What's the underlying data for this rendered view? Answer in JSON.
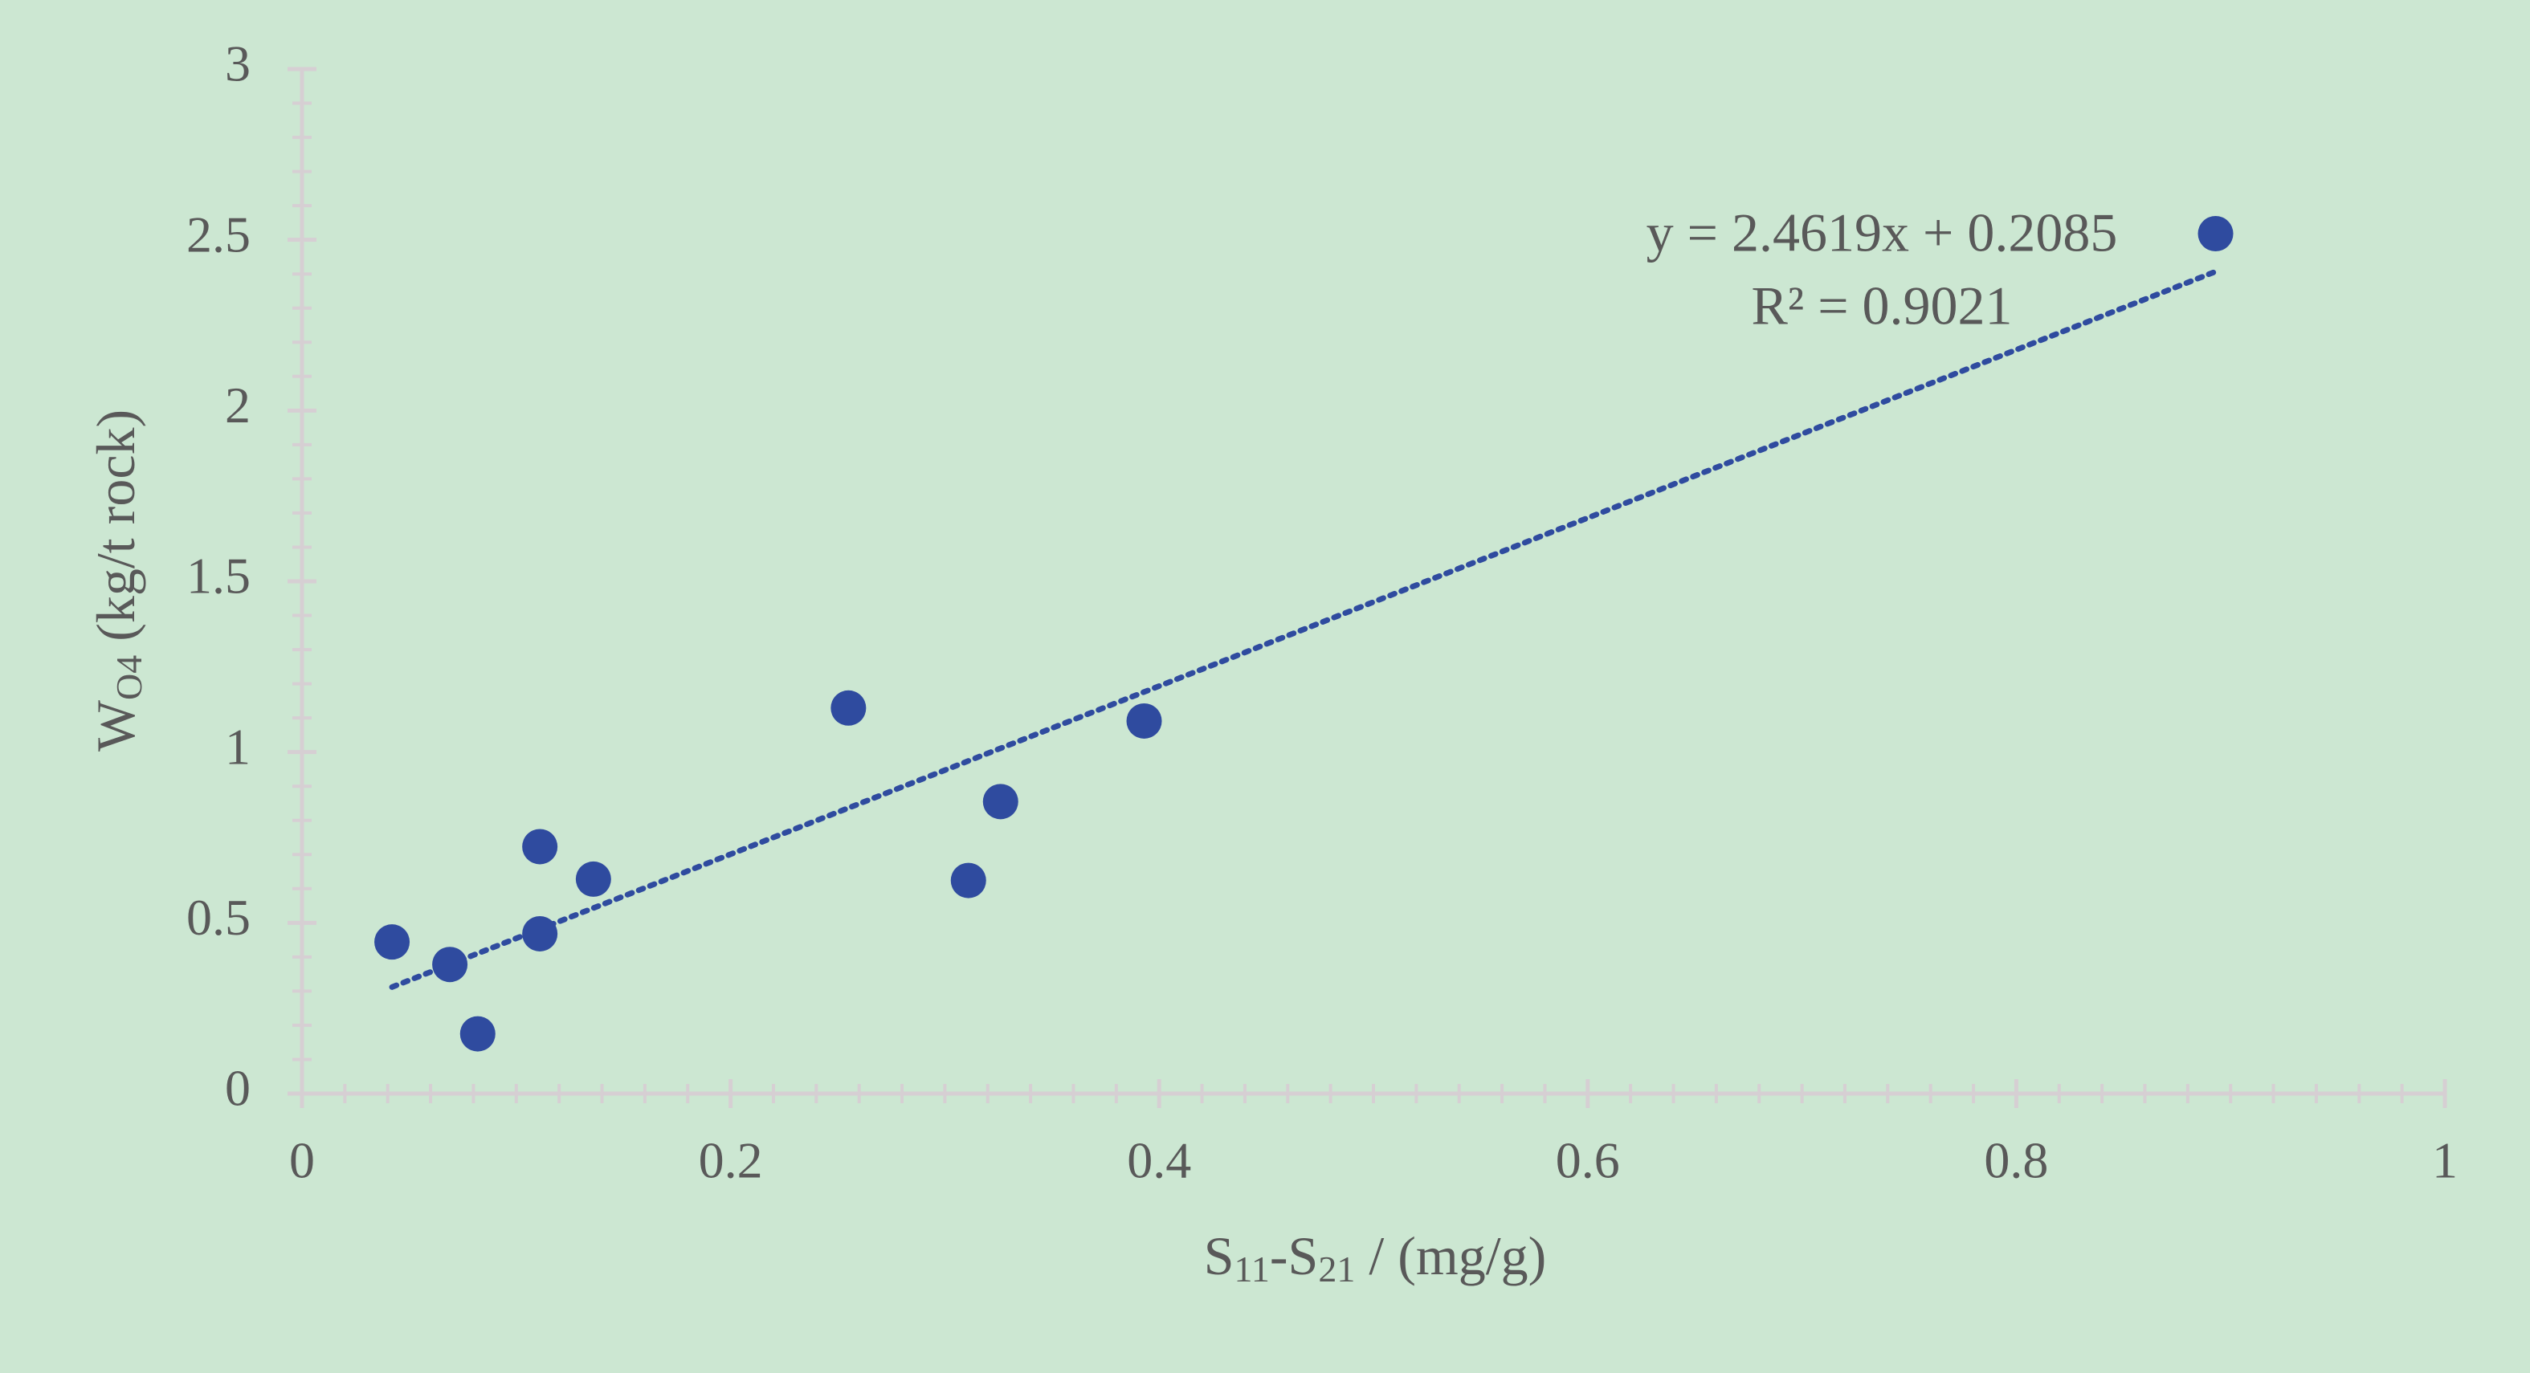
{
  "chart_data": {
    "type": "scatter",
    "x_label": [
      "S",
      "11",
      "-S",
      "21",
      " / (mg/g)"
    ],
    "y_label": [
      "W",
      "O4",
      " (kg/t rock)"
    ],
    "xlim": [
      0,
      1
    ],
    "xticks": [
      0,
      0.2,
      0.4,
      0.6,
      0.8,
      1
    ],
    "ylim": [
      0,
      3
    ],
    "yticks": [
      0,
      0.5,
      1,
      1.5,
      2,
      2.5,
      3
    ],
    "series": [
      {
        "color": "#2f4b9f",
        "x": [
          0.042,
          0.069,
          0.082,
          0.111,
          0.111,
          0.136,
          0.255,
          0.311,
          0.326,
          0.393,
          0.893
        ],
        "values": [
          0.444,
          0.378,
          0.175,
          0.723,
          0.468,
          0.628,
          1.129,
          0.624,
          0.855,
          1.091,
          2.518
        ]
      }
    ],
    "trendline": {
      "slope": 2.4619,
      "intercept": 0.2085,
      "equation": "y = 2.4619x + 0.2085",
      "r2": "R² = 0.9021",
      "color": "#2f4b9f"
    }
  }
}
